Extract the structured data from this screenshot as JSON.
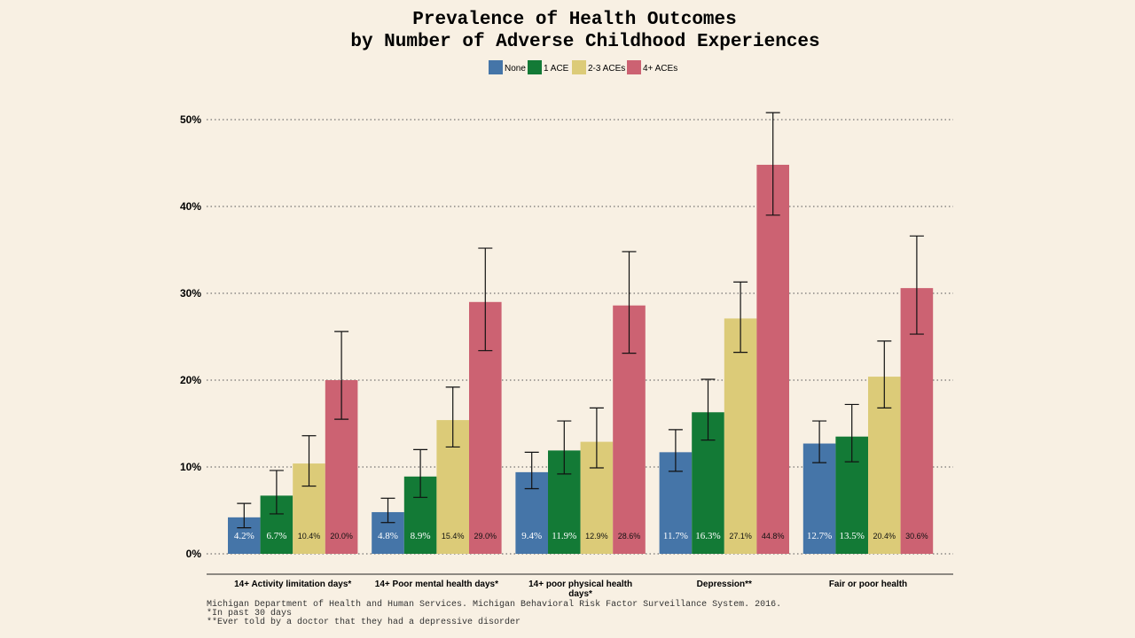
{
  "chart_data": {
    "type": "bar",
    "title_lines": [
      "Prevalence of Health Outcomes",
      "by Number of Adverse Childhood Experiences"
    ],
    "categories": [
      [
        "14+ Activity limitation days*"
      ],
      [
        "14+ Poor mental health days*"
      ],
      [
        "14+ poor physical health",
        "days*"
      ],
      [
        "Depression**"
      ],
      [
        "Fair or poor health"
      ]
    ],
    "series": [
      {
        "name": "None",
        "color": "#4575a8",
        "values": [
          4.2,
          4.8,
          9.4,
          11.7,
          12.7
        ],
        "labels": [
          "4.2%",
          "4.8%",
          "9.4%",
          "11.7%",
          "12.7%"
        ],
        "error_low": [
          3.0,
          3.6,
          7.5,
          9.5,
          10.5
        ],
        "error_high": [
          5.8,
          6.4,
          11.7,
          14.3,
          15.3
        ]
      },
      {
        "name": "1 ACE",
        "color": "#137a36",
        "values": [
          6.7,
          8.9,
          11.9,
          16.3,
          13.5
        ],
        "labels": [
          "6.7%",
          "8.9%",
          "11.9%",
          "16.3%",
          "13.5%"
        ],
        "error_low": [
          4.6,
          6.5,
          9.2,
          13.1,
          10.6
        ],
        "error_high": [
          9.6,
          12.0,
          15.3,
          20.1,
          17.2
        ]
      },
      {
        "name": "2-3 ACEs",
        "color": "#dccb78",
        "values": [
          10.4,
          15.4,
          12.9,
          27.1,
          20.4
        ],
        "labels": [
          "10.4%",
          "15.4%",
          "12.9%",
          "27.1%",
          "20.4%"
        ],
        "error_low": [
          7.8,
          12.3,
          9.9,
          23.2,
          16.8
        ],
        "error_high": [
          13.6,
          19.2,
          16.8,
          31.3,
          24.5
        ]
      },
      {
        "name": "4+ ACEs",
        "color": "#cc6272",
        "values": [
          20.0,
          29.0,
          28.6,
          44.8,
          30.6
        ],
        "labels": [
          "20.0%",
          "29.0%",
          "28.6%",
          "44.8%",
          "30.6%"
        ],
        "error_low": [
          15.5,
          23.4,
          23.1,
          39.0,
          25.3
        ],
        "error_high": [
          25.6,
          35.2,
          34.8,
          50.8,
          36.6
        ]
      }
    ],
    "ylim": [
      0,
      50
    ],
    "yticks": [
      0,
      10,
      20,
      30,
      40,
      50
    ],
    "ytick_labels": [
      "0%",
      "10%",
      "20%",
      "30%",
      "40%",
      "50%"
    ],
    "grid": "horizontal dotted",
    "legend_position": "top-center",
    "footnotes": [
      "Michigan Department of Health and Human Services. Michigan Behavioral Risk Factor Surveillance System. 2016.",
      "*In past 30 days",
      "**Ever told by a doctor that they had a depressive disorder"
    ]
  }
}
